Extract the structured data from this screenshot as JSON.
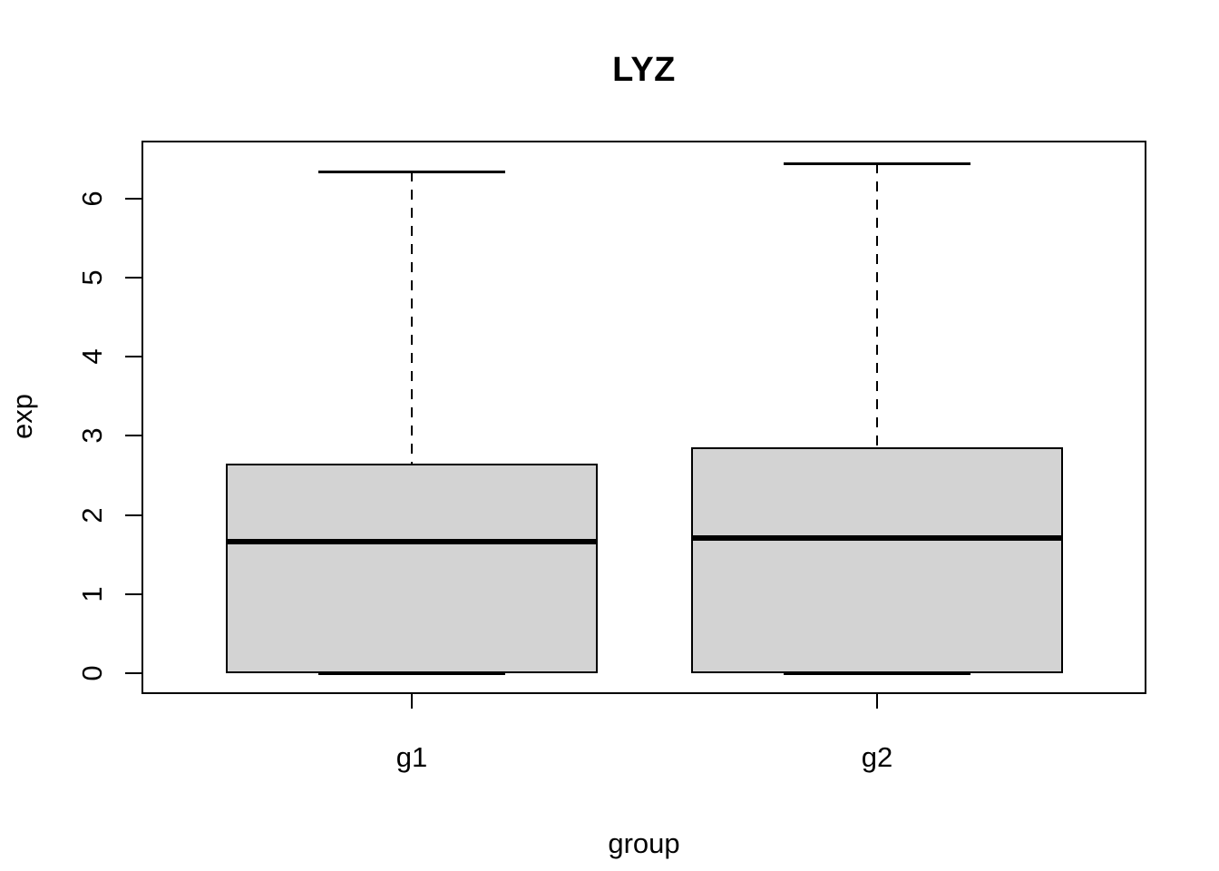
{
  "figure": {
    "background": "#ffffff"
  },
  "chart_data": {
    "type": "boxplot",
    "title": "LYZ",
    "xlabel": "group",
    "ylabel": "exp",
    "categories": [
      "g1",
      "g2"
    ],
    "y_ticks": [
      0,
      1,
      2,
      3,
      4,
      5,
      6
    ],
    "ylim": [
      -0.25,
      6.72
    ],
    "grid": false,
    "legend": "none",
    "series": [
      {
        "name": "g1",
        "min": 0,
        "q1": 0,
        "median": 1.66,
        "q3": 2.65,
        "max": 6.34,
        "outliers": []
      },
      {
        "name": "g2",
        "min": 0,
        "q1": 0,
        "median": 1.71,
        "q3": 2.86,
        "max": 6.45,
        "outliers": []
      }
    ],
    "colors": {
      "box_fill": "#d3d3d3",
      "line": "#000000",
      "background": "#ffffff"
    }
  }
}
